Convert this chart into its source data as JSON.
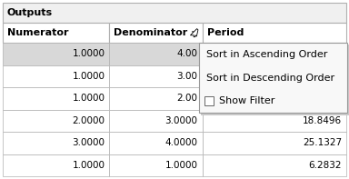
{
  "title": "Outputs",
  "headers": [
    "Numerator",
    "Denominator",
    "Period"
  ],
  "rows": [
    [
      "1.0000",
      "4.00",
      ""
    ],
    [
      "1.0000",
      "3.00",
      ""
    ],
    [
      "1.0000",
      "2.00",
      ""
    ],
    [
      "2.0000",
      "3.0000",
      "18.8496"
    ],
    [
      "3.0000",
      "4.0000",
      "25.1327"
    ],
    [
      "1.0000",
      "1.0000",
      "6.2832"
    ]
  ],
  "dropdown_items": [
    "Sort in Ascending Order",
    "Sort in Descending Order",
    "Show Filter"
  ],
  "bg_title": "#f0f0f0",
  "bg_header": "#ffffff",
  "bg_row_highlight": "#d8d8d8",
  "bg_row_normal": "#ffffff",
  "border_color": "#b0b0b0",
  "dropdown_bg": "#f8f8f8",
  "dropdown_border": "#999999",
  "title_fontsize": 8,
  "header_fontsize": 8,
  "cell_fontsize": 7.5,
  "dropdown_fontsize": 8,
  "fig_width": 3.84,
  "fig_height": 1.97,
  "dpi": 100
}
